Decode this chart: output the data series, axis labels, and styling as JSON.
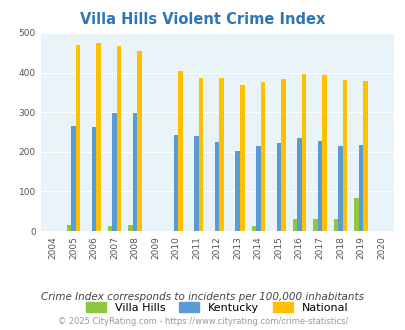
{
  "title": "Villa Hills Violent Crime Index",
  "years": [
    2004,
    2005,
    2006,
    2007,
    2008,
    2009,
    2010,
    2011,
    2012,
    2013,
    2014,
    2015,
    2016,
    2017,
    2018,
    2019,
    2020
  ],
  "villa_hills": [
    0,
    15,
    0,
    13,
    14,
    0,
    0,
    0,
    0,
    0,
    13,
    0,
    30,
    30,
    30,
    83,
    0
  ],
  "kentucky": [
    0,
    265,
    263,
    298,
    298,
    0,
    243,
    239,
    224,
    202,
    214,
    221,
    234,
    228,
    214,
    217,
    0
  ],
  "national": [
    0,
    469,
    474,
    467,
    455,
    0,
    405,
    387,
    387,
    368,
    377,
    384,
    397,
    394,
    381,
    379,
    0
  ],
  "bar_width": 0.22,
  "colors": {
    "villa_hills": "#8dc63f",
    "kentucky": "#5b9bd5",
    "national": "#ffc000"
  },
  "bg_color": "#e8f4f8",
  "plot_bg": "#e8f4f8",
  "fig_bg": "#ffffff",
  "ylim": [
    0,
    500
  ],
  "yticks": [
    0,
    100,
    200,
    300,
    400,
    500
  ],
  "grid_color": "#ffffff",
  "subtitle": "Crime Index corresponds to incidents per 100,000 inhabitants",
  "copyright": "© 2025 CityRating.com - https://www.cityrating.com/crime-statistics/",
  "title_color": "#2e75b6",
  "subtitle_color": "#444444",
  "copyright_color": "#999999",
  "title_fontsize": 10.5,
  "subtitle_fontsize": 7.5,
  "copyright_fontsize": 6.0,
  "tick_fontsize": 6.5,
  "legend_fontsize": 8
}
